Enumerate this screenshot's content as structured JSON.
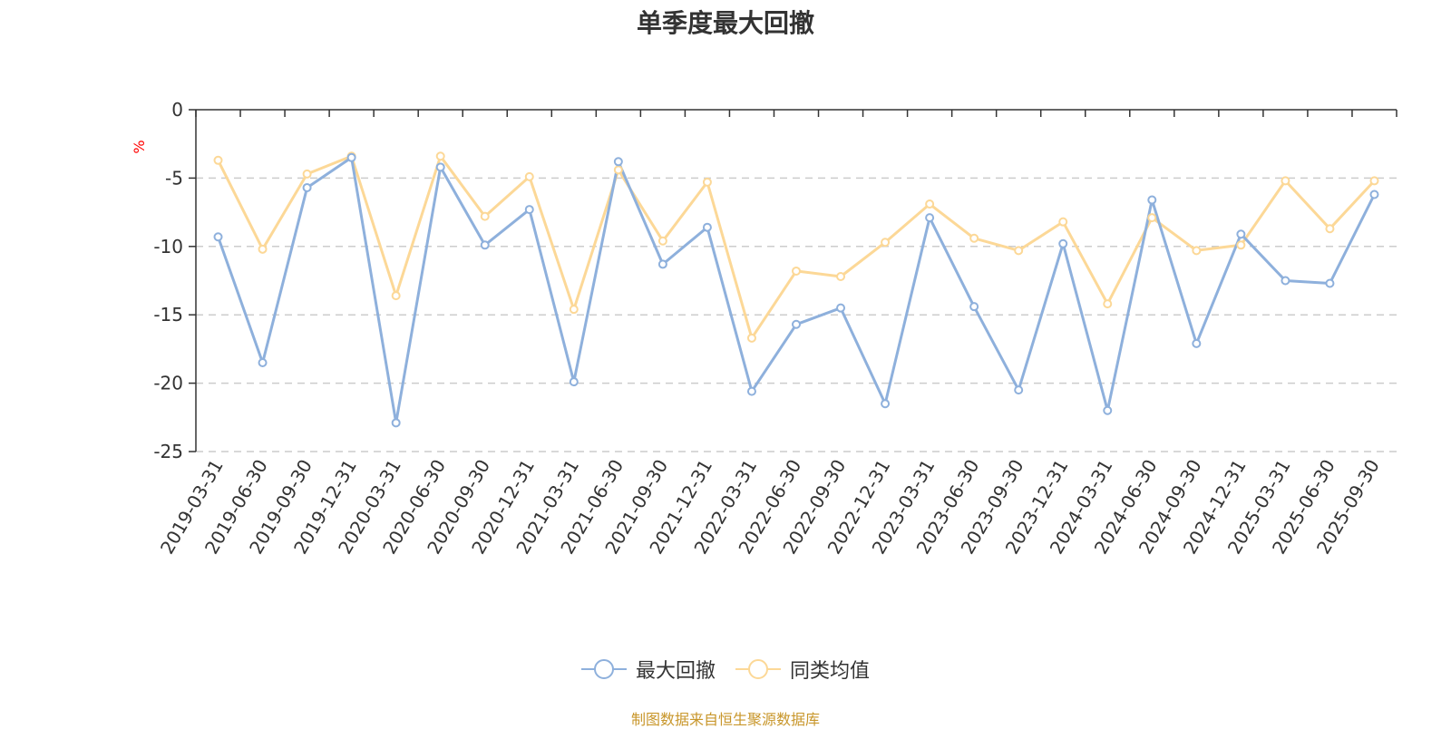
{
  "chart_data": {
    "type": "line",
    "title": "单季度最大回撤",
    "ylabel": "%",
    "ylim": [
      -25,
      0
    ],
    "yticks": [
      0,
      -5,
      -10,
      -15,
      -20,
      -25
    ],
    "grid": true,
    "legend_placement": "bottom-center",
    "categories": [
      "2019-03-31",
      "2019-06-30",
      "2019-09-30",
      "2019-12-31",
      "2020-03-31",
      "2020-06-30",
      "2020-09-30",
      "2020-12-31",
      "2021-03-31",
      "2021-06-30",
      "2021-09-30",
      "2021-12-31",
      "2022-03-31",
      "2022-06-30",
      "2022-09-30",
      "2022-12-31",
      "2023-03-31",
      "2023-06-30",
      "2023-09-30",
      "2023-12-31",
      "2024-03-31",
      "2024-06-30",
      "2024-09-30",
      "2024-12-31",
      "2025-03-31",
      "2025-06-30",
      "2025-09-30"
    ],
    "series": [
      {
        "name": "最大回撤",
        "color": "#8eb0dc",
        "values": [
          -9.3,
          -18.5,
          -5.7,
          -3.5,
          -22.9,
          -4.2,
          -9.9,
          -7.3,
          -19.9,
          -3.8,
          -11.3,
          -8.6,
          -20.6,
          -15.7,
          -14.5,
          -21.5,
          -7.9,
          -14.4,
          -20.5,
          -9.8,
          -22.0,
          -6.6,
          -17.1,
          -9.1,
          -12.5,
          -12.7,
          -6.2
        ]
      },
      {
        "name": "同类均值",
        "color": "#fcd897",
        "values": [
          -3.7,
          -10.2,
          -4.7,
          -3.4,
          -13.6,
          -3.4,
          -7.8,
          -4.9,
          -14.6,
          -4.4,
          -9.6,
          -5.3,
          -16.7,
          -11.8,
          -12.2,
          -9.7,
          -6.9,
          -9.4,
          -10.3,
          -8.2,
          -14.2,
          -7.9,
          -10.3,
          -9.9,
          -5.2,
          -8.7,
          -5.2
        ]
      }
    ]
  },
  "footer": {
    "source": "制图数据来自恒生聚源数据库"
  }
}
